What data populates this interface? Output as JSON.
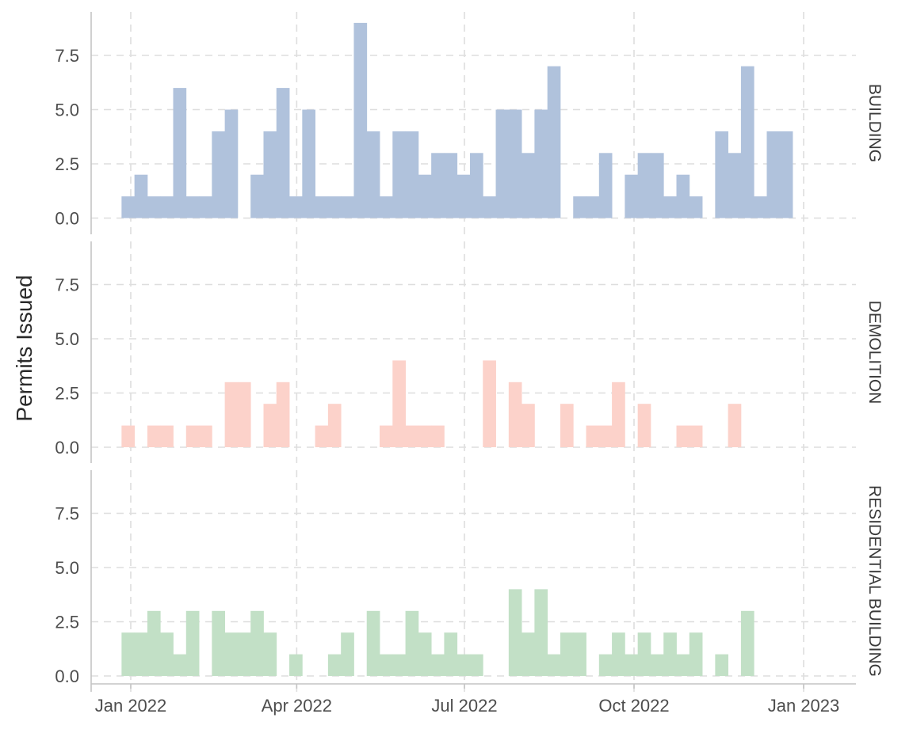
{
  "chart_data": {
    "type": "bar",
    "ylabel": "Permits Issued",
    "ylim": [
      -0.6,
      9.2
    ],
    "y_ticks": [
      "0.0",
      "2.5",
      "5.0",
      "7.5"
    ],
    "x_ticks": [
      "Jan 2022",
      "Apr 2022",
      "Jul 2022",
      "Oct 2022",
      "Jan 2023"
    ],
    "grid": true,
    "legend": "none",
    "bin": "weekly",
    "series": [
      {
        "name": "BUILDING",
        "color": "#b0c2dc",
        "x": [
          "2021-12-27",
          "2022-01-03",
          "2022-01-10",
          "2022-01-17",
          "2022-01-24",
          "2022-01-31",
          "2022-02-07",
          "2022-02-14",
          "2022-02-21",
          "2022-02-28",
          "2022-03-07",
          "2022-03-14",
          "2022-03-21",
          "2022-03-28",
          "2022-04-04",
          "2022-04-11",
          "2022-04-18",
          "2022-04-25",
          "2022-05-02",
          "2022-05-09",
          "2022-05-16",
          "2022-05-23",
          "2022-05-30",
          "2022-06-06",
          "2022-06-13",
          "2022-06-20",
          "2022-06-27",
          "2022-07-04",
          "2022-07-11",
          "2022-07-18",
          "2022-07-25",
          "2022-08-01",
          "2022-08-08",
          "2022-08-15",
          "2022-08-22",
          "2022-08-29",
          "2022-09-05",
          "2022-09-12",
          "2022-09-19",
          "2022-09-26",
          "2022-10-03",
          "2022-10-10",
          "2022-10-17",
          "2022-10-24",
          "2022-10-31",
          "2022-11-07",
          "2022-11-14",
          "2022-11-21",
          "2022-11-28",
          "2022-12-05",
          "2022-12-12",
          "2022-12-19",
          "2022-12-26",
          "2023-01-02"
        ],
        "values": [
          1,
          2,
          1,
          1,
          6,
          1,
          1,
          4,
          5,
          0,
          2,
          4,
          6,
          1,
          5,
          1,
          1,
          1,
          9,
          4,
          1,
          4,
          4,
          2,
          3,
          3,
          2,
          3,
          1,
          5,
          5,
          3,
          5,
          7,
          0,
          1,
          1,
          3,
          0,
          2,
          3,
          3,
          1,
          2,
          1,
          0,
          4,
          3,
          7,
          1,
          4,
          4,
          0,
          0
        ]
      },
      {
        "name": "DEMOLITION",
        "color": "#fcd2ca",
        "x": [
          "2021-12-27",
          "2022-01-03",
          "2022-01-10",
          "2022-01-17",
          "2022-01-24",
          "2022-01-31",
          "2022-02-07",
          "2022-02-14",
          "2022-02-21",
          "2022-02-28",
          "2022-03-07",
          "2022-03-14",
          "2022-03-21",
          "2022-03-28",
          "2022-04-04",
          "2022-04-11",
          "2022-04-18",
          "2022-04-25",
          "2022-05-02",
          "2022-05-09",
          "2022-05-16",
          "2022-05-23",
          "2022-05-30",
          "2022-06-06",
          "2022-06-13",
          "2022-06-20",
          "2022-06-27",
          "2022-07-04",
          "2022-07-11",
          "2022-07-18",
          "2022-07-25",
          "2022-08-01",
          "2022-08-08",
          "2022-08-15",
          "2022-08-22",
          "2022-08-29",
          "2022-09-05",
          "2022-09-12",
          "2022-09-19",
          "2022-09-26",
          "2022-10-03",
          "2022-10-10",
          "2022-10-17",
          "2022-10-24",
          "2022-10-31",
          "2022-11-07",
          "2022-11-14",
          "2022-11-21",
          "2022-11-28",
          "2022-12-05",
          "2022-12-12",
          "2022-12-19",
          "2022-12-26",
          "2023-01-02"
        ],
        "values": [
          1,
          0,
          1,
          1,
          0,
          1,
          1,
          0,
          3,
          3,
          0,
          2,
          3,
          0,
          0,
          1,
          2,
          0,
          0,
          0,
          1,
          4,
          1,
          1,
          1,
          0,
          0,
          0,
          4,
          0,
          3,
          2,
          0,
          0,
          2,
          0,
          1,
          1,
          3,
          0,
          2,
          0,
          0,
          1,
          1,
          0,
          0,
          2,
          0,
          0,
          0,
          0,
          0,
          0
        ]
      },
      {
        "name": "RESIDENTIAL BUILDING",
        "color": "#c2e0c6",
        "x": [
          "2021-12-27",
          "2022-01-03",
          "2022-01-10",
          "2022-01-17",
          "2022-01-24",
          "2022-01-31",
          "2022-02-07",
          "2022-02-14",
          "2022-02-21",
          "2022-02-28",
          "2022-03-07",
          "2022-03-14",
          "2022-03-21",
          "2022-03-28",
          "2022-04-04",
          "2022-04-11",
          "2022-04-18",
          "2022-04-25",
          "2022-05-02",
          "2022-05-09",
          "2022-05-16",
          "2022-05-23",
          "2022-05-30",
          "2022-06-06",
          "2022-06-13",
          "2022-06-20",
          "2022-06-27",
          "2022-07-04",
          "2022-07-11",
          "2022-07-18",
          "2022-07-25",
          "2022-08-01",
          "2022-08-08",
          "2022-08-15",
          "2022-08-22",
          "2022-08-29",
          "2022-09-05",
          "2022-09-12",
          "2022-09-19",
          "2022-09-26",
          "2022-10-03",
          "2022-10-10",
          "2022-10-17",
          "2022-10-24",
          "2022-10-31",
          "2022-11-07",
          "2022-11-14",
          "2022-11-21",
          "2022-11-28",
          "2022-12-05",
          "2022-12-12",
          "2022-12-19",
          "2022-12-26",
          "2023-01-02"
        ],
        "values": [
          2,
          2,
          3,
          2,
          1,
          3,
          0,
          3,
          2,
          2,
          3,
          2,
          0,
          1,
          0,
          0,
          1,
          2,
          0,
          3,
          1,
          1,
          3,
          2,
          1,
          2,
          1,
          1,
          0,
          0,
          4,
          2,
          4,
          1,
          2,
          2,
          0,
          1,
          2,
          1,
          2,
          1,
          2,
          1,
          2,
          0,
          1,
          0,
          3,
          0,
          0,
          0,
          0,
          0
        ]
      }
    ]
  }
}
